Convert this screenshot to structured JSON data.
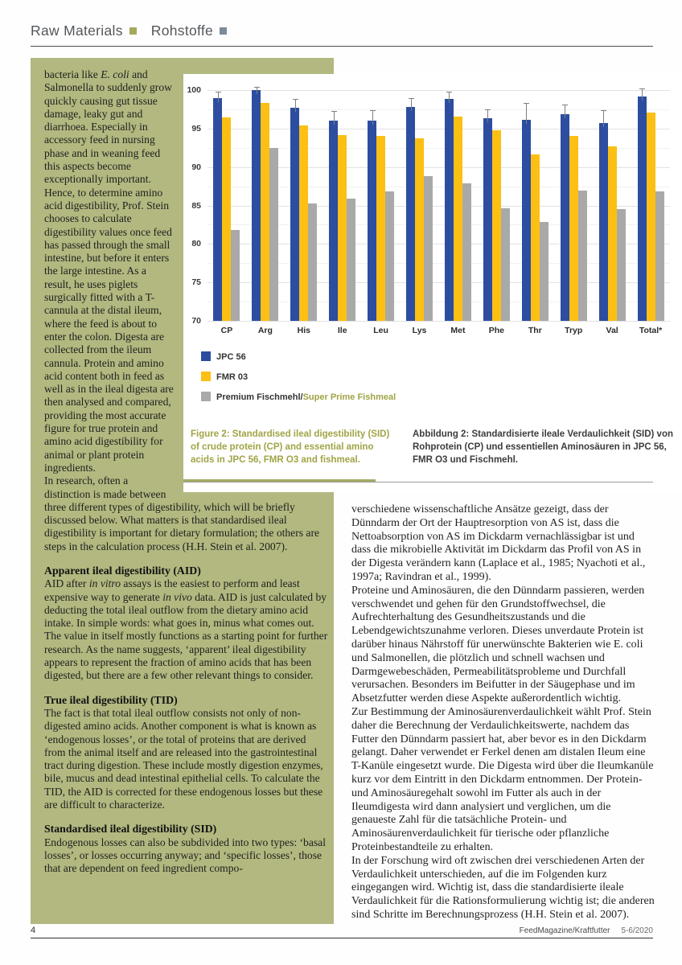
{
  "header": {
    "title_en": "Raw Materials",
    "title_de": "Rohstoffe"
  },
  "left_column": {
    "para1_segments": {
      "0": "bacteria like ",
      "1": "E. coli",
      "2": " and Salmonella to suddenly grow quickly causing gut tissue damage, leaky gut and diarrhoea. Especially in accessory feed in nursing phase and in weaning feed this aspects become exceptionally important. Hence, to determine amino acid digestibility, Prof. Stein chooses to calculate digestibility values once feed has passed through the small intestine, but before it enters the large intestine. As a result, he uses piglets surgically fitted with a T-cannula at the distal ileum, where the feed is about to enter the colon. Digesta are collected from the ileum cannula. Protein and amino acid content both in feed as well as in the ileal digesta are then analysed and compared, providing the most accurate figure for true protein and amino acid digestibility for animal or plant protein ingredients."
    },
    "para2": "In research, often a distinction is made between three different types of digestibility, which will be briefly discussed below. What matters is that standardised ileal digestibility is important for dietary formulation; the others are steps in the calculation process (H.H. Stein et al. 2007).",
    "sections": [
      {
        "heading": "Apparent ileal digestibility (AID)",
        "body_segments": {
          "0": "AID after ",
          "1": "in vitro",
          "2": " assays is the easiest to perform and least expensive way to generate ",
          "3": "in vivo",
          "4": " data. AID is just calculated by deducting the total ileal outflow from the dietary amino acid intake. In simple words: what goes in, minus what comes out. The value in itself mostly functions as a starting point for further research. As the name suggests, ‘apparent’ ileal digestibility appears to represent the fraction of amino acids that has been digested, but there are a few other relevant things to consider."
        }
      },
      {
        "heading": "True ileal digestibility (TID)",
        "body": "The fact is that total ileal outflow consists not only of non-digested amino acids. Another component is what is known as ‘endogenous losses’, or the total of proteins that are derived from the animal itself and are released into the gastrointestinal tract during digestion. These include mostly digestion enzymes, bile, mucus and dead intestinal epithelial cells. To calculate the TID, the AID is corrected for these endogenous losses but these are difficult to characterize."
      },
      {
        "heading": "Standardised ileal digestibility (SID)",
        "body": "Endogenous losses can also be subdivided into two types: ‘basal losses’, or losses occurring anyway; and ‘specific losses’, those that are dependent on feed ingredient compo-"
      }
    ]
  },
  "chart_data": {
    "type": "bar",
    "title": "",
    "xlabel": "",
    "ylabel": "",
    "ylim": [
      70,
      100
    ],
    "ytick_step": 5,
    "grid": true,
    "legend_position": "bottom-left",
    "categories": [
      "CP",
      "Arg",
      "His",
      "Ile",
      "Leu",
      "Lys",
      "Met",
      "Phe",
      "Thr",
      "Tryp",
      "Val",
      "Total*"
    ],
    "series": [
      {
        "name": "JPC 56",
        "color": "#2c4da0",
        "values": [
          99.0,
          100.0,
          97.7,
          96.0,
          96.0,
          97.8,
          98.9,
          96.3,
          96.1,
          96.9,
          95.7,
          99.2
        ],
        "errors": [
          0.8,
          0.4,
          1.1,
          1.3,
          1.4,
          1.2,
          0.9,
          1.2,
          2.2,
          1.2,
          1.7,
          1.0
        ]
      },
      {
        "name": "FMR 03",
        "color": "#fbc013",
        "values": [
          96.4,
          98.3,
          95.4,
          94.1,
          94.0,
          93.7,
          96.6,
          94.8,
          91.6,
          94.0,
          92.7,
          97.1
        ]
      },
      {
        "name": "Premium Fischmehl/",
        "name2": "Super Prime Fishmeal",
        "color": "#a9a9a9",
        "values": [
          81.8,
          92.5,
          85.3,
          85.9,
          86.8,
          88.8,
          87.9,
          84.6,
          82.9,
          86.9,
          84.5,
          86.8
        ]
      }
    ]
  },
  "figure": {
    "caption_en": "Figure 2: Standardised ileal digestibility (SID) of crude protein (CP) and essential amino acids in JPC 56, FMR O3 and fishmeal.",
    "caption_de": "Abbildung 2: Standardisierte ileale Verdaulichkeit (SID) von Rohprotein (CP) und essentiellen Aminosäuren in JPC 56, FMR O3 und Fischmehl."
  },
  "right_column": {
    "paragraphs": [
      "verschiedene wissenschaftliche Ansätze gezeigt, dass der Dünndarm der Ort der Hauptresorption von AS ist, dass die Nettoabsorption von AS im Dickdarm vernachlässigbar ist und dass die mikrobielle Aktivität im Dickdarm das Profil von AS in der Digesta verändern kann (Laplace et al., 1985; Nyachoti et al., 1997a; Ravindran et al., 1999).",
      "Proteine und Aminosäuren, die den Dünndarm passieren, werden verschwendet und gehen für den Grundstoffwechsel, die Aufrechterhaltung des Gesundheitszustands und die Lebendgewichtszunahme verloren. Dieses unverdaute Protein ist darüber hinaus Nährstoff für unerwünschte Bakterien wie E. coli und Salmonellen, die plötzlich und schnell wachsen und Darmgewebeschäden, Permeabilitätsprobleme und Durchfall verursachen. Besonders im Beifutter in der Säugephase und im Absetzfutter werden diese Aspekte außerordentlich wichtig.",
      "Zur Bestimmung der Aminosäurenverdaulichkeit wählt Prof. Stein daher die Berechnung der Verdaulichkeitswerte, nachdem das Futter den Dünndarm passiert hat, aber bevor es in den Dickdarm gelangt. Daher verwendet er Ferkel denen am distalen Ileum eine T-Kanüle eingesetzt wurde. Die Digesta wird über die Ileumkanüle kurz vor dem Eintritt in den Dickdarm entnommen. Der Protein- und Aminosäuregehalt sowohl im Futter als auch in der Ileumdigesta wird dann analysiert und verglichen, um die genaueste Zahl für die tatsächliche Protein- und Aminosäurenverdaulichkeit für tierische oder pflanzliche Proteinbestandteile zu erhalten.",
      "In der Forschung wird oft zwischen drei verschiedenen Arten der Verdaulichkeit unterschieden, auf die im Folgenden kurz eingegangen wird. Wichtig ist, dass die standardisierte ileale Verdaulichkeit für die Rationsformulierung wichtig ist; die anderen sind Schritte im Berechnungsprozess (H.H. Stein et al. 2007)."
    ]
  },
  "footer": {
    "page_number": "4",
    "magazine": "FeedMagazine/Kraftfutter",
    "issue": "5-6/2020"
  },
  "colors": {
    "green_panel": "#b2b87f",
    "olive_accent": "#a5aa64",
    "caption_olive": "#a0a445",
    "header_square_olive": "#a6a95c",
    "header_square_blue": "#7d8b99",
    "bar_blue": "#2c4da0",
    "bar_yellow": "#fbc013",
    "bar_gray": "#a9a9a9"
  }
}
